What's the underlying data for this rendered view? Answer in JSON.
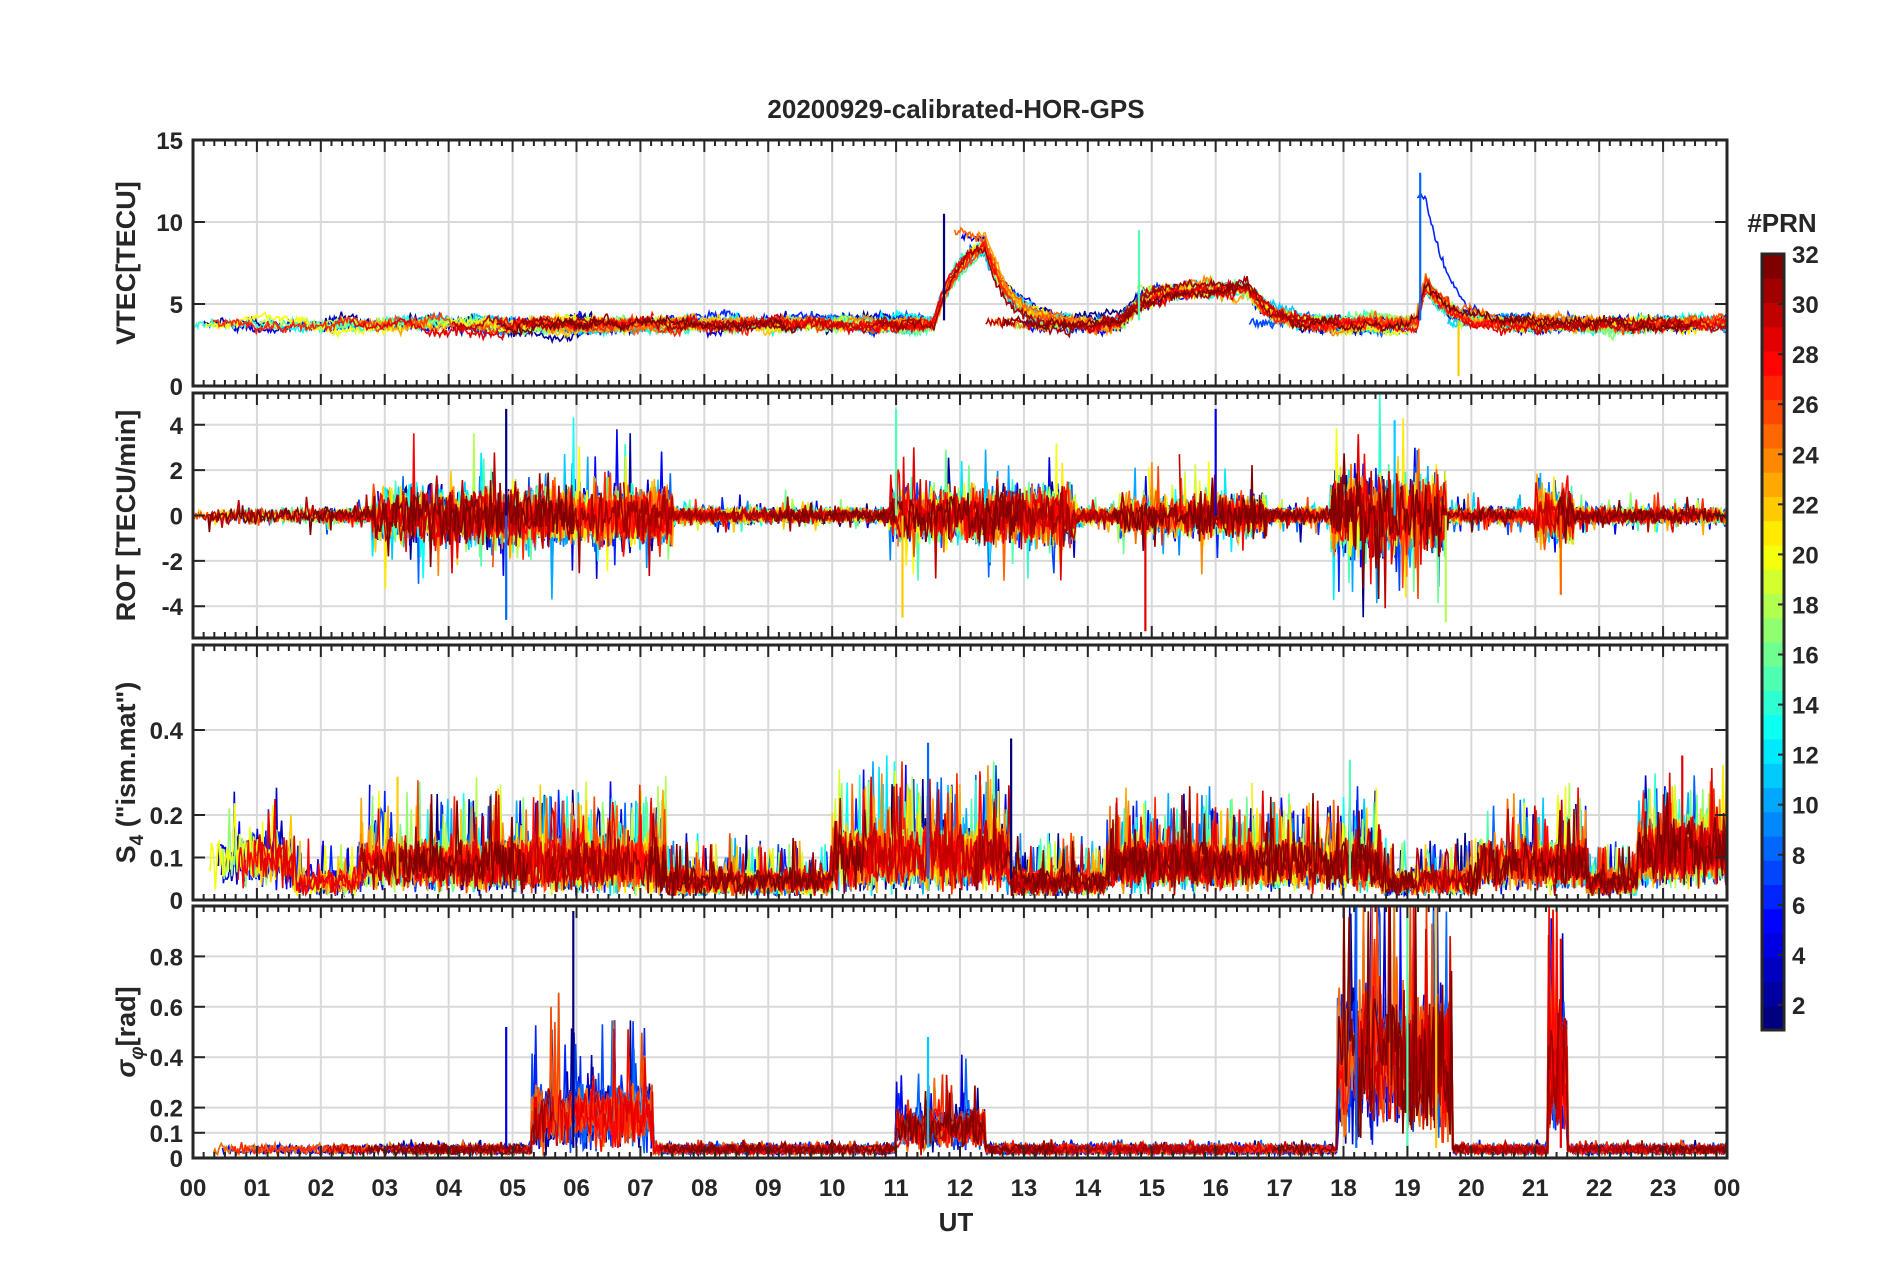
{
  "figure_title": "20200929-calibrated-HOR-GPS",
  "colors": {
    "axis": "#262626",
    "grid": "#d9d9d9",
    "colormap": "jet"
  },
  "chart_data": [
    {
      "type": "line",
      "ylabel": "VTEC[TECU]",
      "ylim": [
        0,
        15
      ],
      "yticks": [
        0,
        5,
        10,
        15
      ],
      "xlim": [
        0,
        24
      ],
      "series_count": 32,
      "sampling_step_h": 0.02,
      "activity": [
        {
          "start": 0,
          "end": 24,
          "mean": 3.8,
          "spread": 1.4
        },
        {
          "start": 11.6,
          "end": 12.4,
          "mean": 9.2,
          "spread": 1.0
        },
        {
          "start": 14.5,
          "end": 16.5,
          "mean": 6.0,
          "spread": 1.5
        },
        {
          "start": 19.15,
          "end": 19.3,
          "mean": 11.5,
          "spread": 1.3
        }
      ],
      "samples": [
        {
          "x": 11.75,
          "y": 10.5
        },
        {
          "x": 19.2,
          "y": 13.0
        },
        {
          "x": 14.8,
          "y": 9.5
        },
        {
          "x": 19.8,
          "y": 0.6
        }
      ]
    },
    {
      "type": "line",
      "ylabel": "ROT [TECU/min]",
      "ylim": [
        -5.4,
        5.4
      ],
      "yticks": [
        -4,
        -2,
        0,
        2,
        4
      ],
      "xlim": [
        0,
        24
      ],
      "series_count": 32,
      "sampling_step_h": 0.02,
      "activity": [
        {
          "start": 0,
          "end": 24,
          "mean": 0,
          "spread": 0.35
        },
        {
          "start": 2.8,
          "end": 7.5,
          "mean": 0,
          "spread": 1.3
        },
        {
          "start": 10.9,
          "end": 13.8,
          "mean": 0,
          "spread": 1.2
        },
        {
          "start": 14.5,
          "end": 16.8,
          "mean": 0,
          "spread": 0.9
        },
        {
          "start": 17.8,
          "end": 19.6,
          "mean": 0,
          "spread": 1.8
        },
        {
          "start": 21.0,
          "end": 21.6,
          "mean": 0,
          "spread": 1.2
        }
      ],
      "samples": [
        {
          "x": 4.9,
          "y": 4.7
        },
        {
          "x": 4.9,
          "y": -4.6
        },
        {
          "x": 11.0,
          "y": 4.7
        },
        {
          "x": 11.1,
          "y": -4.5
        },
        {
          "x": 14.9,
          "y": -5.1
        },
        {
          "x": 16.0,
          "y": 4.7
        },
        {
          "x": 18.8,
          "y": 4.2
        },
        {
          "x": 19.6,
          "y": -4.7
        },
        {
          "x": 21.4,
          "y": -3.5
        }
      ]
    },
    {
      "type": "line",
      "ylabel": "S_4 (\"ism.mat\")",
      "ylim": [
        0,
        0.6
      ],
      "yticks": [
        0,
        0.1,
        0.2,
        0.4
      ],
      "xlim": [
        0,
        24
      ],
      "series_count": 32,
      "sampling_step_h": 0.02,
      "activity": [
        {
          "start": 0,
          "end": 24,
          "mean": 0.05,
          "spread": 0.04
        },
        {
          "start": 0,
          "end": 1.6,
          "mean": 0.11,
          "spread": 0.06
        },
        {
          "start": 2.6,
          "end": 7.4,
          "mean": 0.1,
          "spread": 0.07
        },
        {
          "start": 10,
          "end": 12.8,
          "mean": 0.12,
          "spread": 0.08
        },
        {
          "start": 14.3,
          "end": 18.6,
          "mean": 0.1,
          "spread": 0.06
        },
        {
          "start": 20.1,
          "end": 21.8,
          "mean": 0.1,
          "spread": 0.06
        },
        {
          "start": 22.6,
          "end": 24,
          "mean": 0.13,
          "spread": 0.07
        }
      ],
      "samples": [
        {
          "x": 12.8,
          "y": 0.38
        },
        {
          "x": 11.5,
          "y": 0.37
        },
        {
          "x": 18.1,
          "y": 0.33
        },
        {
          "x": 3.2,
          "y": 0.29
        },
        {
          "x": 23.3,
          "y": 0.34
        }
      ]
    },
    {
      "type": "line",
      "ylabel": "σ_φ[rad]",
      "ylim": [
        0,
        1.0
      ],
      "yticks": [
        0,
        0.1,
        0.2,
        0.4,
        0.6,
        0.8
      ],
      "xlim": [
        0,
        24
      ],
      "series_count": 32,
      "sampling_step_h": 0.02,
      "activity": [
        {
          "start": 0,
          "end": 24,
          "mean": 0.04,
          "spread": 0.01
        },
        {
          "start": 5.3,
          "end": 7.2,
          "mean": 0.2,
          "spread": 0.17
        },
        {
          "start": 11.0,
          "end": 12.4,
          "mean": 0.14,
          "spread": 0.1
        },
        {
          "start": 17.9,
          "end": 19.7,
          "mean": 0.45,
          "spread": 0.35
        },
        {
          "start": 21.2,
          "end": 21.5,
          "mean": 0.4,
          "spread": 0.3
        }
      ],
      "samples": [
        {
          "x": 5.95,
          "y": 0.98
        },
        {
          "x": 18.2,
          "y": 1.0
        },
        {
          "x": 19.0,
          "y": 1.0
        },
        {
          "x": 19.45,
          "y": 1.0
        },
        {
          "x": 21.4,
          "y": 0.87
        },
        {
          "x": 4.9,
          "y": 0.52
        },
        {
          "x": 11.5,
          "y": 0.48
        }
      ]
    }
  ],
  "x_axis": {
    "label": "UT",
    "tick_labels": [
      "00",
      "01",
      "02",
      "03",
      "04",
      "05",
      "06",
      "07",
      "08",
      "09",
      "10",
      "11",
      "12",
      "13",
      "14",
      "15",
      "16",
      "17",
      "18",
      "19",
      "20",
      "21",
      "22",
      "23",
      "00"
    ]
  },
  "colorbar": {
    "title": "#PRN",
    "range": [
      1,
      32
    ],
    "tick_labels": [
      "2",
      "4",
      "6",
      "8",
      "10",
      "12",
      "14",
      "16",
      "18",
      "20",
      "22",
      "24",
      "26",
      "28",
      "30",
      "32"
    ]
  }
}
